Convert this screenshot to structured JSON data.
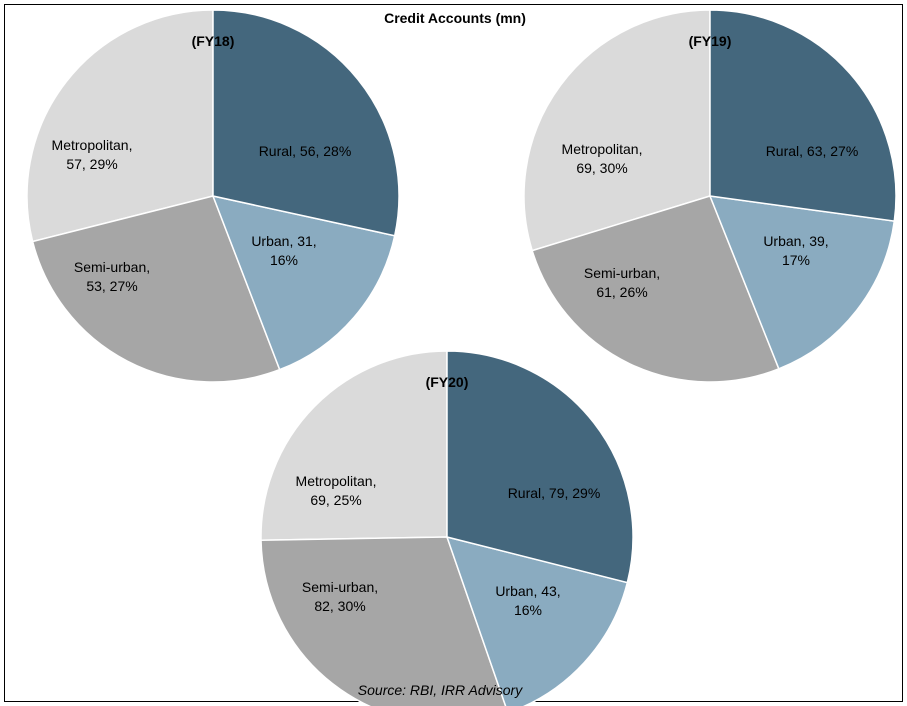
{
  "chart_data": [
    {
      "type": "pie",
      "title": "(FY18)",
      "slices": [
        {
          "name": "Rural",
          "value": 56,
          "percent": "28%",
          "label_lines": [
            "Rural, 56, 28%"
          ]
        },
        {
          "name": "Urban",
          "value": 31,
          "percent": "16%",
          "label_lines": [
            "Urban, 31,",
            "16%"
          ]
        },
        {
          "name": "Semi-urban",
          "value": 53,
          "percent": "27%",
          "label_lines": [
            "Semi-urban,",
            "53, 27%"
          ]
        },
        {
          "name": "Metropolitan",
          "value": 57,
          "percent": "29%",
          "label_lines": [
            "Metropolitan,",
            "57, 29%"
          ]
        }
      ]
    },
    {
      "type": "pie",
      "title": "(FY19)",
      "slices": [
        {
          "name": "Rural",
          "value": 63,
          "percent": "27%",
          "label_lines": [
            "Rural, 63, 27%"
          ]
        },
        {
          "name": "Urban",
          "value": 39,
          "percent": "17%",
          "label_lines": [
            "Urban, 39,",
            "17%"
          ]
        },
        {
          "name": "Semi-urban",
          "value": 61,
          "percent": "26%",
          "label_lines": [
            "Semi-urban,",
            "61, 26%"
          ]
        },
        {
          "name": "Metropolitan",
          "value": 69,
          "percent": "30%",
          "label_lines": [
            "Metropolitan,",
            "69, 30%"
          ]
        }
      ]
    },
    {
      "type": "pie",
      "title": "(FY20)",
      "slices": [
        {
          "name": "Rural",
          "value": 79,
          "percent": "29%",
          "label_lines": [
            "Rural, 79, 29%"
          ]
        },
        {
          "name": "Urban",
          "value": 43,
          "percent": "16%",
          "label_lines": [
            "Urban, 43,",
            "16%"
          ]
        },
        {
          "name": "Semi-urban",
          "value": 82,
          "percent": "30%",
          "label_lines": [
            "Semi-urban,",
            "82, 30%"
          ]
        },
        {
          "name": "Metropolitan",
          "value": 69,
          "percent": "25%",
          "label_lines": [
            "Metropolitan,",
            "69, 25%"
          ]
        }
      ]
    }
  ],
  "figure": {
    "title": "Credit Accounts (mn)",
    "source": "Source: RBI, IRR Advisory"
  },
  "colors": {
    "Rural": "#44677d",
    "Urban": "#8aabc0",
    "Semi-urban": "#a6a6a6",
    "Metropolitan": "#dadada"
  }
}
